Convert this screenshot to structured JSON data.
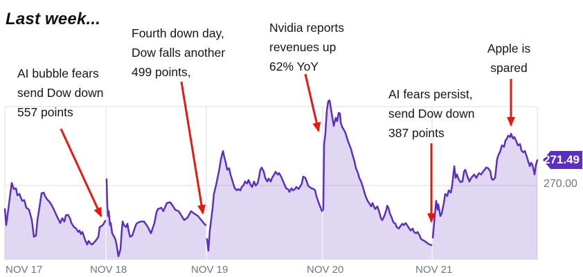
{
  "title": "Last week...",
  "price_axis": {
    "last_price_label": "271.49",
    "gridline_label": "270.00"
  },
  "colors": {
    "line": "#5b2fc0",
    "fill": "rgba(91,47,192,0.19)",
    "arrow": "#e8170e",
    "badge_bg": "#5b2fc0",
    "gridline": "#e8e8e8",
    "axis_text": "#70757a"
  },
  "chart_data": {
    "type": "area",
    "title": "Last week...",
    "categories": [
      "NOV 17",
      "NOV 18",
      "NOV 19",
      "NOV 20",
      "NOV 21"
    ],
    "x_unit": "t = trading-day index (0-5), fraction = intraday time",
    "ylim": [
      265.6,
      275.5
    ],
    "y_gridline_values": [
      270.0
    ],
    "last_price": 271.49,
    "grid": true,
    "legend": false,
    "annotations": [
      {
        "id": "ai-bubble",
        "text": "AI bubble fears\nsend Dow down\n557 points"
      },
      {
        "id": "fourth-down-day",
        "text": "Fourth down day,\nDow falls another\n499 points,"
      },
      {
        "id": "nvidia-reports",
        "text": "Nvidia reports\nrevenues up\n62% YoY"
      },
      {
        "id": "ai-fears-persist",
        "text": "AI fears persist,\nsend Dow down\n387 points"
      },
      {
        "id": "apple-spared",
        "text": "Apple is\nspared"
      }
    ],
    "points": [
      [
        0.0,
        268.62
      ],
      [
        0.014,
        267.68
      ],
      [
        0.068,
        270.16
      ],
      [
        0.089,
        269.8
      ],
      [
        0.11,
        269.84
      ],
      [
        0.123,
        269.43
      ],
      [
        0.144,
        269.51
      ],
      [
        0.171,
        269.11
      ],
      [
        0.192,
        269.15
      ],
      [
        0.212,
        268.7
      ],
      [
        0.24,
        268.58
      ],
      [
        0.267,
        267.97
      ],
      [
        0.288,
        266.99
      ],
      [
        0.308,
        267.07
      ],
      [
        0.322,
        267.97
      ],
      [
        0.342,
        268.7
      ],
      [
        0.363,
        269.55
      ],
      [
        0.384,
        269.59
      ],
      [
        0.397,
        269.39
      ],
      [
        0.418,
        269.19
      ],
      [
        0.445,
        269.02
      ],
      [
        0.466,
        268.82
      ],
      [
        0.486,
        268.58
      ],
      [
        0.514,
        268.21
      ],
      [
        0.534,
        267.97
      ],
      [
        0.548,
        267.8
      ],
      [
        0.568,
        268.09
      ],
      [
        0.589,
        267.89
      ],
      [
        0.603,
        268.25
      ],
      [
        0.623,
        268.29
      ],
      [
        0.644,
        268.09
      ],
      [
        0.658,
        267.8
      ],
      [
        0.685,
        267.56
      ],
      [
        0.705,
        267.48
      ],
      [
        0.726,
        267.28
      ],
      [
        0.74,
        267.36
      ],
      [
        0.753,
        267.15
      ],
      [
        0.767,
        267.28
      ],
      [
        0.795,
        266.79
      ],
      [
        0.815,
        266.54
      ],
      [
        0.829,
        266.75
      ],
      [
        0.849,
        266.59
      ],
      [
        0.863,
        266.54
      ],
      [
        0.884,
        266.67
      ],
      [
        0.897,
        266.75
      ],
      [
        0.925,
        266.99
      ],
      [
        0.938,
        267.56
      ],
      [
        0.959,
        267.64
      ],
      [
        0.973,
        267.72
      ],
      [
        0.993,
        267.93
      ],
      [
        1.007,
        270.37
      ],
      [
        1.014,
        268.78
      ],
      [
        1.021,
        268.21
      ],
      [
        1.028,
        268.5
      ],
      [
        1.041,
        267.68
      ],
      [
        1.048,
        267.8
      ],
      [
        1.062,
        267.2
      ],
      [
        1.083,
        266.99
      ],
      [
        1.097,
        266.79
      ],
      [
        1.11,
        266.38
      ],
      [
        1.124,
        265.85
      ],
      [
        1.145,
        266.26
      ],
      [
        1.159,
        267.48
      ],
      [
        1.166,
        267.89
      ],
      [
        1.179,
        267.68
      ],
      [
        1.2,
        267.56
      ],
      [
        1.214,
        267.76
      ],
      [
        1.228,
        267.28
      ],
      [
        1.241,
        266.99
      ],
      [
        1.262,
        267.07
      ],
      [
        1.297,
        267.68
      ],
      [
        1.31,
        267.8
      ],
      [
        1.345,
        267.89
      ],
      [
        1.379,
        267.89
      ],
      [
        1.414,
        267.6
      ],
      [
        1.448,
        267.2
      ],
      [
        1.483,
        267.8
      ],
      [
        1.503,
        268.42
      ],
      [
        1.517,
        268.62
      ],
      [
        1.552,
        268.7
      ],
      [
        1.572,
        268.5
      ],
      [
        1.607,
        268.98
      ],
      [
        1.641,
        269.02
      ],
      [
        1.669,
        268.78
      ],
      [
        1.69,
        268.58
      ],
      [
        1.724,
        268.5
      ],
      [
        1.759,
        268.17
      ],
      [
        1.779,
        267.97
      ],
      [
        1.814,
        268.13
      ],
      [
        1.828,
        268.29
      ],
      [
        1.848,
        268.5
      ],
      [
        1.876,
        268.37
      ],
      [
        1.917,
        268.21
      ],
      [
        1.945,
        268.01
      ],
      [
        1.979,
        267.76
      ],
      [
        1.993,
        267.68
      ],
      [
        2.006,
        266.87
      ],
      [
        2.018,
        266.18
      ],
      [
        2.03,
        267.36
      ],
      [
        2.054,
        268.7
      ],
      [
        2.065,
        269.51
      ],
      [
        2.083,
        270.0
      ],
      [
        2.095,
        270.41
      ],
      [
        2.113,
        271.02
      ],
      [
        2.125,
        271.54
      ],
      [
        2.143,
        272.03
      ],
      [
        2.155,
        271.67
      ],
      [
        2.167,
        271.34
      ],
      [
        2.179,
        270.93
      ],
      [
        2.196,
        271.02
      ],
      [
        2.208,
        270.65
      ],
      [
        2.226,
        270.24
      ],
      [
        2.244,
        269.84
      ],
      [
        2.262,
        269.72
      ],
      [
        2.274,
        269.8
      ],
      [
        2.292,
        269.72
      ],
      [
        2.304,
        269.92
      ],
      [
        2.321,
        270.04
      ],
      [
        2.333,
        270.24
      ],
      [
        2.351,
        270.12
      ],
      [
        2.363,
        270.33
      ],
      [
        2.381,
        270.04
      ],
      [
        2.393,
        269.92
      ],
      [
        2.411,
        270.24
      ],
      [
        2.423,
        270.0
      ],
      [
        2.44,
        270.12
      ],
      [
        2.452,
        270.45
      ],
      [
        2.464,
        270.93
      ],
      [
        2.476,
        271.06
      ],
      [
        2.494,
        270.81
      ],
      [
        2.506,
        270.45
      ],
      [
        2.524,
        270.24
      ],
      [
        2.536,
        270.41
      ],
      [
        2.554,
        270.24
      ],
      [
        2.565,
        270.45
      ],
      [
        2.583,
        270.65
      ],
      [
        2.595,
        270.81
      ],
      [
        2.613,
        270.65
      ],
      [
        2.625,
        270.73
      ],
      [
        2.643,
        270.53
      ],
      [
        2.655,
        270.33
      ],
      [
        2.673,
        270.04
      ],
      [
        2.685,
        269.84
      ],
      [
        2.702,
        269.8
      ],
      [
        2.714,
        269.63
      ],
      [
        2.732,
        269.84
      ],
      [
        2.744,
        269.72
      ],
      [
        2.762,
        269.8
      ],
      [
        2.774,
        269.92
      ],
      [
        2.792,
        269.8
      ],
      [
        2.804,
        269.92
      ],
      [
        2.821,
        270.12
      ],
      [
        2.833,
        270.53
      ],
      [
        2.851,
        270.45
      ],
      [
        2.863,
        270.24
      ],
      [
        2.875,
        270.0
      ],
      [
        2.887,
        269.92
      ],
      [
        2.905,
        269.84
      ],
      [
        2.923,
        269.8
      ],
      [
        2.935,
        269.72
      ],
      [
        2.946,
        269.39
      ],
      [
        2.964,
        269.02
      ],
      [
        2.982,
        268.7
      ],
      [
        2.994,
        268.5
      ],
      [
        3.006,
        268.58
      ],
      [
        3.013,
        272.44
      ],
      [
        3.025,
        273.05
      ],
      [
        3.038,
        274.39
      ],
      [
        3.051,
        274.96
      ],
      [
        3.063,
        275.0
      ],
      [
        3.076,
        274.51
      ],
      [
        3.089,
        273.98
      ],
      [
        3.101,
        273.5
      ],
      [
        3.108,
        273.7
      ],
      [
        3.12,
        273.98
      ],
      [
        3.133,
        273.78
      ],
      [
        3.146,
        274.27
      ],
      [
        3.158,
        274.23
      ],
      [
        3.165,
        273.7
      ],
      [
        3.177,
        273.46
      ],
      [
        3.196,
        273.25
      ],
      [
        3.209,
        273.09
      ],
      [
        3.228,
        272.68
      ],
      [
        3.241,
        272.44
      ],
      [
        3.259,
        272.15
      ],
      [
        3.272,
        271.83
      ],
      [
        3.291,
        271.42
      ],
      [
        3.304,
        271.02
      ],
      [
        3.323,
        270.73
      ],
      [
        3.335,
        270.45
      ],
      [
        3.354,
        270.2
      ],
      [
        3.373,
        269.8
      ],
      [
        3.392,
        269.39
      ],
      [
        3.411,
        269.11
      ],
      [
        3.424,
        268.98
      ],
      [
        3.443,
        268.78
      ],
      [
        3.456,
        268.98
      ],
      [
        3.468,
        268.78
      ],
      [
        3.481,
        268.62
      ],
      [
        3.5,
        268.78
      ],
      [
        3.519,
        268.42
      ],
      [
        3.532,
        268.09
      ],
      [
        3.544,
        267.97
      ],
      [
        3.563,
        268.21
      ],
      [
        3.582,
        268.58
      ],
      [
        3.589,
        268.82
      ],
      [
        3.601,
        268.7
      ],
      [
        3.614,
        268.37
      ],
      [
        3.633,
        268.09
      ],
      [
        3.646,
        267.85
      ],
      [
        3.665,
        267.76
      ],
      [
        3.677,
        267.56
      ],
      [
        3.696,
        267.48
      ],
      [
        3.709,
        267.6
      ],
      [
        3.728,
        267.76
      ],
      [
        3.741,
        267.68
      ],
      [
        3.759,
        267.8
      ],
      [
        3.772,
        267.68
      ],
      [
        3.791,
        267.48
      ],
      [
        3.804,
        267.36
      ],
      [
        3.823,
        267.48
      ],
      [
        3.835,
        267.28
      ],
      [
        3.854,
        267.2
      ],
      [
        3.867,
        267.28
      ],
      [
        3.886,
        267.07
      ],
      [
        3.899,
        266.87
      ],
      [
        3.918,
        266.79
      ],
      [
        3.93,
        266.75
      ],
      [
        3.949,
        266.67
      ],
      [
        3.962,
        266.59
      ],
      [
        3.981,
        266.54
      ],
      [
        3.994,
        266.5
      ],
      [
        4.007,
        266.95
      ],
      [
        4.039,
        269.11
      ],
      [
        4.053,
        268.58
      ],
      [
        4.059,
        268.9
      ],
      [
        4.079,
        268.21
      ],
      [
        4.092,
        268.37
      ],
      [
        4.112,
        268.98
      ],
      [
        4.125,
        269.51
      ],
      [
        4.145,
        269.39
      ],
      [
        4.158,
        269.72
      ],
      [
        4.178,
        269.59
      ],
      [
        4.191,
        270.0
      ],
      [
        4.211,
        271.14
      ],
      [
        4.224,
        270.45
      ],
      [
        4.237,
        270.65
      ],
      [
        4.25,
        270.41
      ],
      [
        4.27,
        270.2
      ],
      [
        4.289,
        270.24
      ],
      [
        4.303,
        270.81
      ],
      [
        4.316,
        270.93
      ],
      [
        4.336,
        270.53
      ],
      [
        4.355,
        270.24
      ],
      [
        4.368,
        270.41
      ],
      [
        4.382,
        270.53
      ],
      [
        4.401,
        270.65
      ],
      [
        4.421,
        270.45
      ],
      [
        4.434,
        270.61
      ],
      [
        4.447,
        270.73
      ],
      [
        4.467,
        270.65
      ],
      [
        4.487,
        270.85
      ],
      [
        4.5,
        270.93
      ],
      [
        4.513,
        271.06
      ],
      [
        4.533,
        271.02
      ],
      [
        4.553,
        270.85
      ],
      [
        4.566,
        270.41
      ],
      [
        4.579,
        270.33
      ],
      [
        4.599,
        270.45
      ],
      [
        4.618,
        271.54
      ],
      [
        4.632,
        271.83
      ],
      [
        4.645,
        271.95
      ],
      [
        4.664,
        272.36
      ],
      [
        4.684,
        272.28
      ],
      [
        4.697,
        272.64
      ],
      [
        4.711,
        272.76
      ],
      [
        4.724,
        272.93
      ],
      [
        4.743,
        272.85
      ],
      [
        4.75,
        273.05
      ],
      [
        4.77,
        272.76
      ],
      [
        4.783,
        272.85
      ],
      [
        4.803,
        272.56
      ],
      [
        4.816,
        272.36
      ],
      [
        4.836,
        272.44
      ],
      [
        4.849,
        272.07
      ],
      [
        4.868,
        271.95
      ],
      [
        4.882,
        272.03
      ],
      [
        4.901,
        271.67
      ],
      [
        4.914,
        271.42
      ],
      [
        4.928,
        271.14
      ],
      [
        4.941,
        271.34
      ],
      [
        4.954,
        271.22
      ],
      [
        4.967,
        270.85
      ],
      [
        4.974,
        270.65
      ],
      [
        4.987,
        271.22
      ],
      [
        5.0,
        271.49
      ]
    ]
  }
}
